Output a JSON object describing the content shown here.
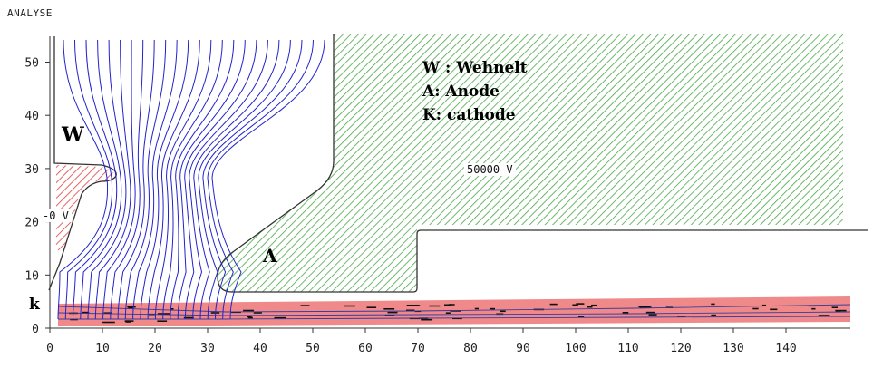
{
  "header": {
    "title": "ANALYSE"
  },
  "legend": {
    "items": [
      "W : Wehnelt",
      "A: Anode",
      "K: cathode"
    ]
  },
  "labels": {
    "wehnelt": "W",
    "anode": "A",
    "cathode": "k"
  },
  "voltages": {
    "anode": "50000 V",
    "wehnelt": "-0 V"
  },
  "axes": {
    "x_ticks": [
      "0",
      "10",
      "20",
      "30",
      "40",
      "50",
      "60",
      "70",
      "80",
      "90",
      "100",
      "110",
      "120",
      "130",
      "140"
    ],
    "y_ticks": [
      "0",
      "10",
      "20",
      "30",
      "40",
      "50"
    ]
  },
  "colors": {
    "anode_hatch": "#4aa64a",
    "wehnelt_hatch": "#e04040",
    "beam_fill": "#f08a8a",
    "field_lines": "#2222cc",
    "outline": "#333333"
  }
}
